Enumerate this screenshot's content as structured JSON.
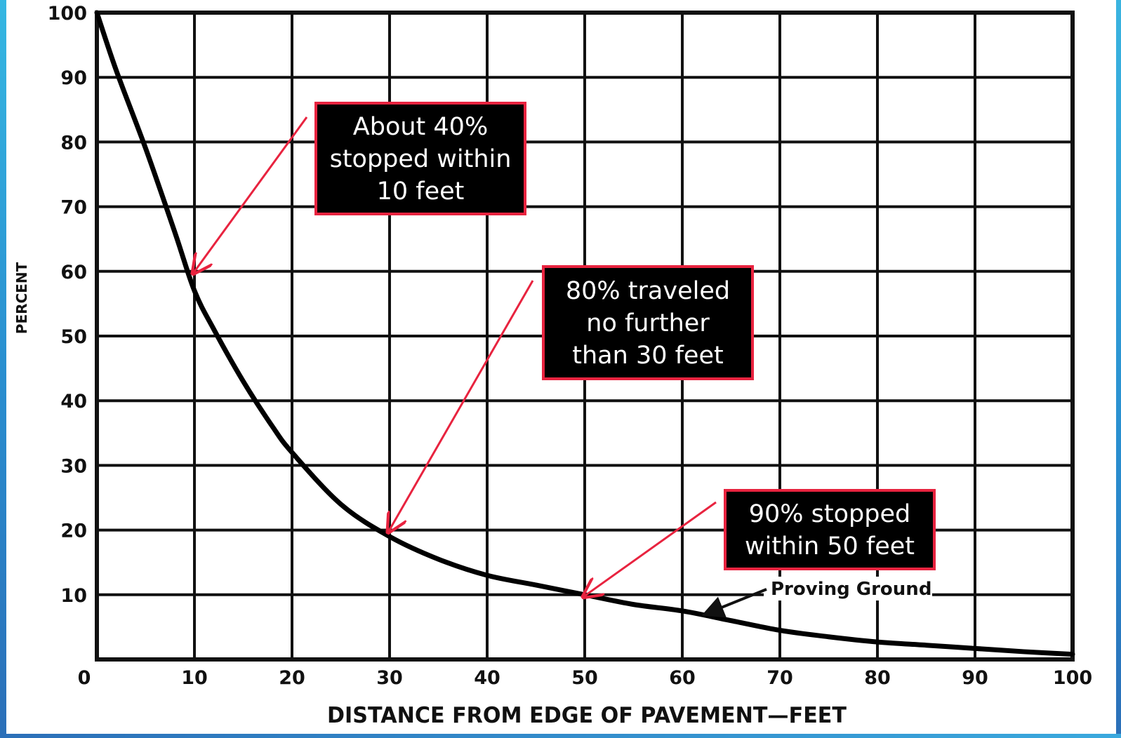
{
  "chart_data": {
    "type": "line",
    "title": "",
    "xlabel": "DISTANCE FROM EDGE OF PAVEMENT—FEET",
    "ylabel": "PERCENT",
    "xlim": [
      0,
      100
    ],
    "ylim": [
      0,
      100
    ],
    "grid": true,
    "x_ticks": [
      "0",
      "10",
      "20",
      "30",
      "40",
      "50",
      "60",
      "70",
      "80",
      "90",
      "100"
    ],
    "y_ticks": [
      "10",
      "20",
      "30",
      "40",
      "50",
      "60",
      "70",
      "80",
      "90",
      "100"
    ],
    "series": [
      {
        "name": "Proving Ground",
        "x": [
          0,
          2,
          5,
          8,
          10,
          12,
          15,
          18,
          20,
          25,
          30,
          35,
          40,
          45,
          50,
          55,
          60,
          65,
          70,
          75,
          80,
          85,
          90,
          95,
          100
        ],
        "y": [
          100,
          91,
          79,
          66,
          57,
          51,
          43,
          36,
          32,
          24,
          19,
          15.5,
          13,
          11.5,
          10,
          8.5,
          7.5,
          6,
          4.5,
          3.5,
          2.7,
          2.2,
          1.7,
          1.2,
          0.8
        ]
      }
    ],
    "annotations": [
      {
        "lines": [
          "About 40%",
          "stopped within",
          "10 feet"
        ],
        "points_to": {
          "x": 10,
          "y": 60
        }
      },
      {
        "lines": [
          "80% traveled",
          "no further",
          "than 30 feet"
        ],
        "points_to": {
          "x": 30,
          "y": 20
        }
      },
      {
        "lines": [
          "90% stopped",
          "within 50 feet"
        ],
        "points_to": {
          "x": 50,
          "y": 10
        }
      }
    ],
    "annotation_box_fill": "#000000",
    "annotation_border_color": "#e8233f",
    "arrow_color": "#e8233f",
    "line_color": "#000000"
  }
}
